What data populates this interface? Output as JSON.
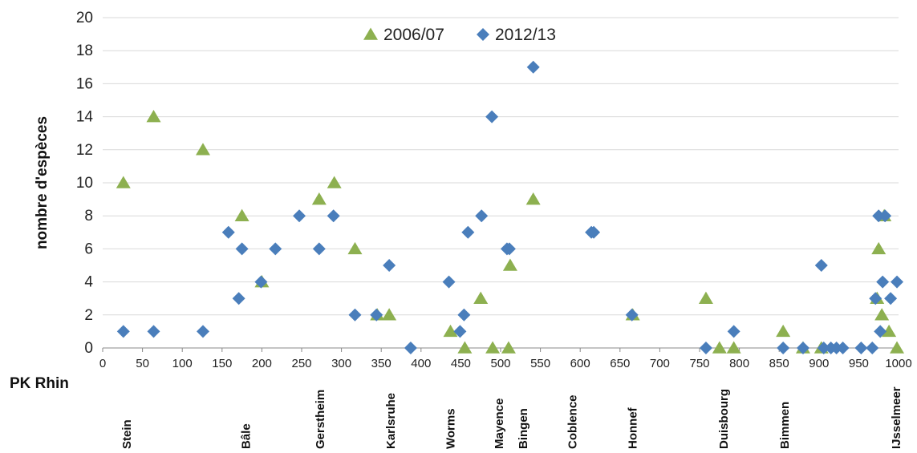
{
  "chart_data": {
    "type": "scatter",
    "title": "",
    "xlabel": "PK Rhin",
    "ylabel": "nombre d'espèces",
    "xlim": [
      0,
      1000
    ],
    "ylim": [
      0,
      20
    ],
    "x_ticks": [
      "0",
      "50",
      "100",
      "150",
      "200",
      "250",
      "300",
      "350",
      "400",
      "450",
      "500",
      "550",
      "600",
      "650",
      "700",
      "750",
      "800",
      "850",
      "900",
      "950",
      "1000"
    ],
    "y_ticks": [
      "0",
      "2",
      "4",
      "6",
      "8",
      "10",
      "12",
      "14",
      "16",
      "18",
      "20"
    ],
    "grid": "horizontal",
    "legend_position": "top-center",
    "series": [
      {
        "name": "2006/07",
        "marker": "triangle",
        "color": "#8db050",
        "points": [
          [
            26,
            10
          ],
          [
            64,
            14
          ],
          [
            126,
            12
          ],
          [
            175,
            8
          ],
          [
            200,
            4
          ],
          [
            272,
            9
          ],
          [
            291,
            10
          ],
          [
            317,
            6
          ],
          [
            345,
            2
          ],
          [
            360,
            2
          ],
          [
            437,
            1
          ],
          [
            455,
            0
          ],
          [
            475,
            3
          ],
          [
            490,
            0
          ],
          [
            510,
            0
          ],
          [
            512,
            5
          ],
          [
            541,
            9
          ],
          [
            666,
            2
          ],
          [
            758,
            3
          ],
          [
            775,
            0
          ],
          [
            793,
            0
          ],
          [
            855,
            1
          ],
          [
            880,
            0
          ],
          [
            903,
            0
          ],
          [
            973,
            3
          ],
          [
            975,
            6
          ],
          [
            979,
            2
          ],
          [
            982,
            8
          ],
          [
            988,
            1
          ],
          [
            998,
            0
          ]
        ]
      },
      {
        "name": "2012/13",
        "marker": "diamond",
        "color": "#4a7ebb",
        "points": [
          [
            26,
            1
          ],
          [
            64,
            1
          ],
          [
            126,
            1
          ],
          [
            158,
            7
          ],
          [
            171,
            3
          ],
          [
            175,
            6
          ],
          [
            199,
            4
          ],
          [
            217,
            6
          ],
          [
            247,
            8
          ],
          [
            272,
            6
          ],
          [
            290,
            8
          ],
          [
            317,
            2
          ],
          [
            344,
            2
          ],
          [
            360,
            5
          ],
          [
            387,
            0
          ],
          [
            435,
            4
          ],
          [
            449,
            1
          ],
          [
            454,
            2
          ],
          [
            459,
            7
          ],
          [
            476,
            8
          ],
          [
            489,
            14
          ],
          [
            508,
            6
          ],
          [
            511,
            6
          ],
          [
            541,
            17
          ],
          [
            614,
            7
          ],
          [
            617,
            7
          ],
          [
            665,
            2
          ],
          [
            758,
            0
          ],
          [
            793,
            1
          ],
          [
            855,
            0
          ],
          [
            880,
            0
          ],
          [
            903,
            5
          ],
          [
            906,
            0
          ],
          [
            915,
            0
          ],
          [
            922,
            0
          ],
          [
            930,
            0
          ],
          [
            953,
            0
          ],
          [
            967,
            0
          ],
          [
            971,
            3
          ],
          [
            975,
            8
          ],
          [
            977,
            1
          ],
          [
            980,
            4
          ],
          [
            983,
            8
          ],
          [
            990,
            3
          ],
          [
            998,
            4
          ]
        ]
      }
    ],
    "place_labels": [
      {
        "name": "Stein",
        "pk": 30
      },
      {
        "name": "Bâle",
        "pk": 180
      },
      {
        "name": "Gerstheim",
        "pk": 273
      },
      {
        "name": "Karlsruhe",
        "pk": 362
      },
      {
        "name": "Worms",
        "pk": 437
      },
      {
        "name": "Mayence",
        "pk": 498
      },
      {
        "name": "Bingen",
        "pk": 528
      },
      {
        "name": "Coblence",
        "pk": 590
      },
      {
        "name": "Honnef",
        "pk": 666
      },
      {
        "name": "Duisbourg",
        "pk": 780
      },
      {
        "name": "Bimmen",
        "pk": 857
      },
      {
        "name": "IJsselmeer",
        "pk": 997
      }
    ]
  }
}
